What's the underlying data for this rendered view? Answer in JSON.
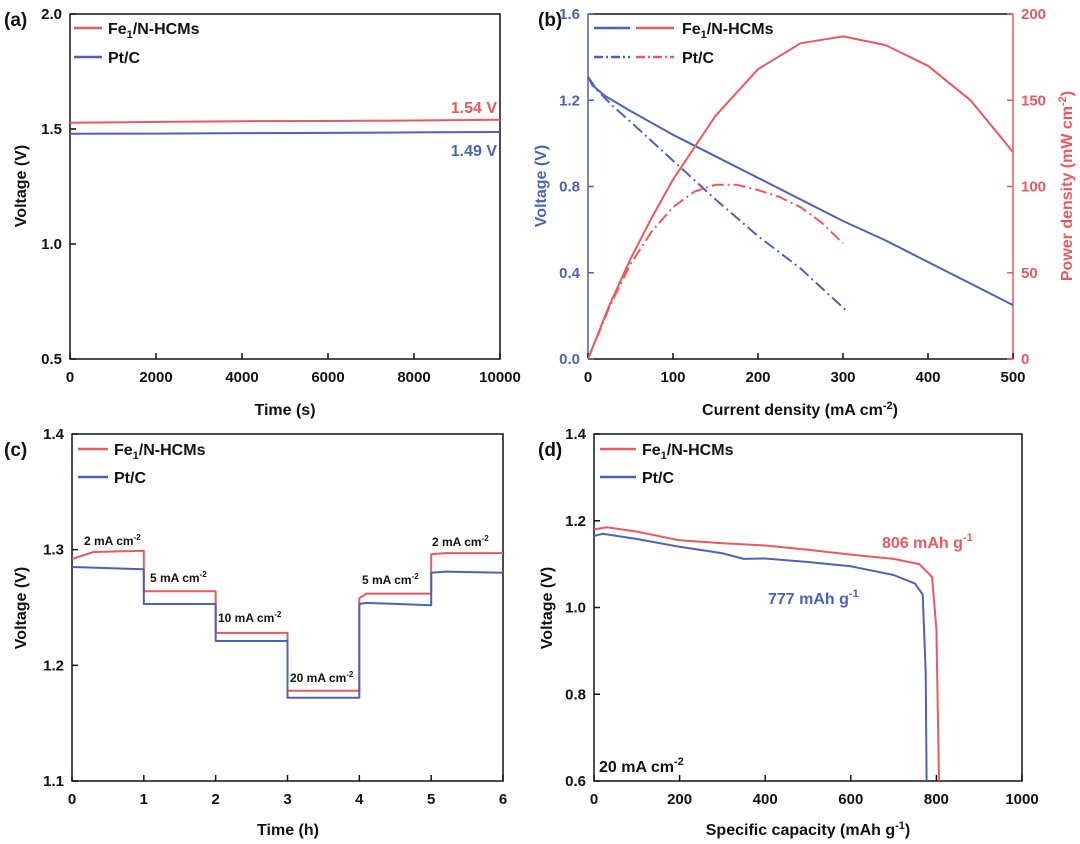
{
  "colors": {
    "red": "#e8595e",
    "blue": "#4c62b3",
    "axis": "#111111"
  },
  "chart_data": [
    {
      "id": "a",
      "type": "line",
      "panel_label": "(a)",
      "xlabel": "Time (s)",
      "ylabel": "Voltage (V)",
      "xlim": [
        0,
        10000
      ],
      "ylim": [
        0.5,
        2.0
      ],
      "xticks": [
        0,
        2000,
        4000,
        6000,
        8000,
        10000
      ],
      "yticks": [
        0.5,
        1.0,
        1.5,
        2.0
      ],
      "ytick_labels": [
        "0.5",
        "1.0",
        "1.5",
        "2.0"
      ],
      "legend": [
        "Fe1/N-HCMs",
        "Pt/C"
      ],
      "series": [
        {
          "name": "Fe1/N-HCMs",
          "color": "red",
          "x": [
            0,
            2000,
            4000,
            6000,
            8000,
            10000
          ],
          "y": [
            1.527,
            1.531,
            1.534,
            1.535,
            1.537,
            1.54
          ]
        },
        {
          "name": "Pt/C",
          "color": "blue",
          "x": [
            0,
            2000,
            4000,
            6000,
            8000,
            10000
          ],
          "y": [
            1.479,
            1.48,
            1.482,
            1.483,
            1.485,
            1.487
          ]
        }
      ],
      "annotations": [
        {
          "text": "1.54 V",
          "color": "red"
        },
        {
          "text": "1.49 V",
          "color": "blue"
        }
      ]
    },
    {
      "id": "b",
      "type": "line",
      "panel_label": "(b)",
      "xlabel": "Current density (mA cm-2)",
      "ylabel": "Voltage (V)",
      "y2label": "Power density (mW cm-2)",
      "xlim": [
        0,
        500
      ],
      "ylim": [
        0,
        1.6
      ],
      "y2lim": [
        0,
        200
      ],
      "xticks": [
        0,
        100,
        200,
        300,
        400,
        500
      ],
      "yticks": [
        0,
        0.4,
        0.8,
        1.2,
        1.6
      ],
      "ytick_labels": [
        "0.0",
        "0.4",
        "0.8",
        "1.2",
        "1.6"
      ],
      "y2ticks": [
        0,
        50,
        100,
        150,
        200
      ],
      "legend": [
        "Fe1/N-HCMs",
        "Pt/C"
      ],
      "series": [
        {
          "name": "Fe1/N-HCMs voltage",
          "color": "blue",
          "axis": "y",
          "dash": "solid",
          "x": [
            0,
            5,
            20,
            50,
            100,
            150,
            200,
            250,
            300,
            350,
            400,
            450,
            500
          ],
          "y": [
            1.31,
            1.27,
            1.22,
            1.15,
            1.04,
            0.94,
            0.84,
            0.74,
            0.64,
            0.55,
            0.45,
            0.35,
            0.25
          ]
        },
        {
          "name": "Fe1/N-HCMs power",
          "color": "red",
          "axis": "y2",
          "dash": "solid",
          "x": [
            0,
            25,
            50,
            75,
            100,
            150,
            200,
            250,
            300,
            350,
            400,
            450,
            500
          ],
          "y": [
            0,
            31,
            58,
            82,
            104,
            141,
            168,
            183,
            187,
            182,
            170,
            150,
            120
          ]
        },
        {
          "name": "Pt/C voltage",
          "color": "blue",
          "axis": "y",
          "dash": "dashdot",
          "x": [
            0,
            10,
            30,
            50,
            100,
            150,
            200,
            250,
            305
          ],
          "y": [
            1.31,
            1.25,
            1.17,
            1.1,
            0.92,
            0.74,
            0.57,
            0.42,
            0.22
          ]
        },
        {
          "name": "Pt/C power",
          "color": "red",
          "axis": "y2",
          "dash": "dashdot",
          "x": [
            0,
            25,
            50,
            75,
            100,
            125,
            150,
            175,
            200,
            225,
            250,
            275,
            300
          ],
          "y": [
            0,
            30,
            55,
            74,
            88,
            97,
            101,
            101,
            98,
            94,
            88,
            79,
            67
          ]
        }
      ]
    },
    {
      "id": "c",
      "type": "line",
      "panel_label": "(c)",
      "xlabel": "Time (h)",
      "ylabel": "Voltage (V)",
      "xlim": [
        0,
        6
      ],
      "ylim": [
        1.1,
        1.4
      ],
      "xticks": [
        0,
        1,
        2,
        3,
        4,
        5,
        6
      ],
      "yticks": [
        1.1,
        1.2,
        1.3,
        1.4
      ],
      "ytick_labels": [
        "1.1",
        "1.2",
        "1.3",
        "1.4"
      ],
      "legend": [
        "Fe1/N-HCMs",
        "Pt/C"
      ],
      "series": [
        {
          "name": "Fe1/N-HCMs",
          "color": "red",
          "x": [
            0,
            0.3,
            1,
            1,
            2,
            2,
            3,
            3,
            4,
            4,
            4.1,
            5,
            5,
            5.2,
            6
          ],
          "y": [
            1.292,
            1.298,
            1.299,
            1.264,
            1.264,
            1.228,
            1.228,
            1.178,
            1.178,
            1.258,
            1.262,
            1.262,
            1.296,
            1.297,
            1.297
          ]
        },
        {
          "name": "Pt/C",
          "color": "blue",
          "x": [
            0,
            1,
            1,
            2,
            2,
            3,
            3,
            4,
            4,
            4.1,
            5,
            5,
            5.2,
            6
          ],
          "y": [
            1.285,
            1.283,
            1.253,
            1.253,
            1.221,
            1.221,
            1.172,
            1.172,
            1.253,
            1.254,
            1.252,
            1.28,
            1.281,
            1.28
          ]
        }
      ],
      "step_labels": [
        "2 mA cm-2",
        "5 mA cm-2",
        "10 mA cm-2",
        "20 mA cm-2",
        "5 mA cm-2",
        "2 mA cm-2"
      ]
    },
    {
      "id": "d",
      "type": "line",
      "panel_label": "(d)",
      "xlabel": "Specific capacity (mAh g-1)",
      "ylabel": "Voltage (V)",
      "xlim": [
        0,
        1000
      ],
      "ylim": [
        0.6,
        1.4
      ],
      "xticks": [
        0,
        200,
        400,
        600,
        800,
        1000
      ],
      "yticks": [
        0.6,
        0.8,
        1.0,
        1.2,
        1.4
      ],
      "ytick_labels": [
        "0.6",
        "0.8",
        "1.0",
        "1.2",
        "1.4"
      ],
      "legend": [
        "Fe1/N-HCMs",
        "Pt/C"
      ],
      "series": [
        {
          "name": "Fe1/N-HCMs",
          "color": "red",
          "x": [
            0,
            30,
            100,
            200,
            300,
            400,
            500,
            600,
            700,
            760,
            790,
            800,
            806
          ],
          "y": [
            1.18,
            1.185,
            1.175,
            1.155,
            1.148,
            1.143,
            1.133,
            1.122,
            1.112,
            1.1,
            1.07,
            0.95,
            0.6
          ]
        },
        {
          "name": "Pt/C",
          "color": "blue",
          "x": [
            0,
            20,
            100,
            200,
            300,
            350,
            400,
            500,
            600,
            700,
            750,
            768,
            775,
            777
          ],
          "y": [
            1.165,
            1.17,
            1.158,
            1.14,
            1.125,
            1.112,
            1.113,
            1.105,
            1.095,
            1.075,
            1.055,
            1.03,
            0.85,
            0.6
          ]
        }
      ],
      "annotations": [
        {
          "text": "806 mAh g-1",
          "color": "red"
        },
        {
          "text": "777 mAh g-1",
          "color": "blue"
        },
        {
          "text": "20 mA cm-2",
          "color": "axis"
        }
      ]
    }
  ]
}
